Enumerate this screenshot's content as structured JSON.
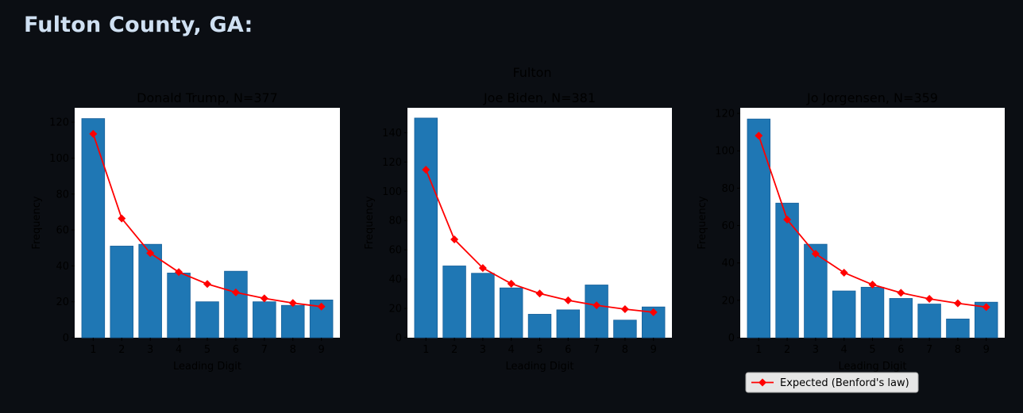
{
  "page": {
    "title": "Fulton County, GA:"
  },
  "chart_data": {
    "type": "bar",
    "suptitle": "Fulton",
    "categories": [
      "1",
      "2",
      "3",
      "4",
      "5",
      "6",
      "7",
      "8",
      "9"
    ],
    "xlabel": "Leading Digit",
    "ylabel": "Frequency",
    "legend": {
      "label": "Expected (Benford's law)",
      "placement": "below-right"
    },
    "colors": {
      "bar": "#1f77b4",
      "expected": "#ff0000",
      "axes_bg": "#ffffff",
      "figure_bg": "#0b0e13"
    },
    "panels": [
      {
        "title": "Donald Trump, N=377",
        "ylim": [
          0,
          128
        ],
        "yticks": [
          0,
          20,
          40,
          60,
          80,
          100,
          120
        ],
        "values": [
          122,
          51,
          52,
          36,
          20,
          37,
          20,
          18,
          21
        ],
        "expected": [
          113.5,
          66.4,
          47.1,
          36.5,
          29.9,
          25.2,
          21.9,
          19.3,
          17.3
        ]
      },
      {
        "title": "Joe Biden, N=381",
        "ylim": [
          0,
          157
        ],
        "yticks": [
          0,
          20,
          40,
          60,
          80,
          100,
          120,
          140
        ],
        "values": [
          150,
          49,
          44,
          34,
          16,
          19,
          36,
          12,
          21
        ],
        "expected": [
          114.7,
          67.1,
          47.6,
          36.9,
          30.2,
          25.5,
          22.1,
          19.5,
          17.4
        ]
      },
      {
        "title": "Jo Jorgensen, N=359",
        "ylim": [
          0,
          123
        ],
        "yticks": [
          0,
          20,
          40,
          60,
          80,
          100,
          120
        ],
        "values": [
          117,
          72,
          50,
          25,
          27,
          21,
          18,
          10,
          19
        ],
        "expected": [
          108.1,
          63.2,
          44.9,
          34.8,
          28.4,
          24.0,
          20.8,
          18.4,
          16.4
        ]
      }
    ]
  }
}
